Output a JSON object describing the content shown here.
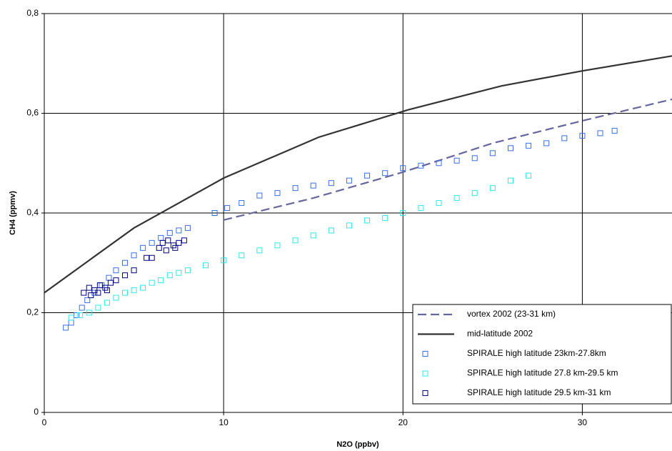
{
  "chart_data": {
    "type": "scatter",
    "x_label": "N2O (ppbv)",
    "y_label": "CH4 (ppmv)",
    "xlim": [
      0,
      35
    ],
    "xticks": [
      0,
      10,
      20,
      30
    ],
    "ylim": [
      0,
      0.8
    ],
    "yticks": [
      0,
      {
        "value": 0.2,
        "label": "0,2"
      },
      {
        "value": 0.4,
        "label": "0,4"
      },
      {
        "value": 0.6,
        "label": "0,6"
      },
      {
        "value": 0.8,
        "label": "0,8"
      }
    ],
    "grid": true,
    "legend": "lower right",
    "series": [
      {
        "name": "vortex 2002 (23-31 km)",
        "style": "dashed",
        "color": "#66669f",
        "x": [
          10,
          15,
          20,
          25,
          30,
          35
        ],
        "values": [
          0.386,
          0.43,
          0.482,
          0.54,
          0.585,
          0.628
        ]
      },
      {
        "name": "mid-latitude 2002",
        "style": "solid",
        "color": "#333333",
        "x": [
          0,
          5,
          10,
          15.3,
          20.3,
          25.5,
          30,
          35
        ],
        "values": [
          0.24,
          0.37,
          0.47,
          0.552,
          0.607,
          0.655,
          0.685,
          0.715
        ]
      },
      {
        "name": "SPIRALE high latitude 23km-27.8km",
        "style": "square",
        "color": "#3a6ee8",
        "x": [
          1.2,
          1.5,
          1.8,
          2.1,
          2.4,
          2.8,
          3.2,
          3.6,
          4.0,
          4.5,
          5.0,
          5.5,
          6.0,
          6.5,
          7.0,
          7.5,
          8.0,
          9.5,
          10.2,
          11,
          12,
          13,
          14,
          15,
          16,
          17,
          18,
          19,
          20,
          21,
          22,
          23,
          24,
          25,
          26,
          27,
          28,
          29,
          30,
          31,
          31.8
        ],
        "values": [
          0.17,
          0.18,
          0.195,
          0.21,
          0.225,
          0.24,
          0.255,
          0.27,
          0.285,
          0.3,
          0.315,
          0.33,
          0.34,
          0.35,
          0.36,
          0.365,
          0.37,
          0.4,
          0.41,
          0.42,
          0.435,
          0.44,
          0.45,
          0.455,
          0.46,
          0.465,
          0.475,
          0.48,
          0.49,
          0.495,
          0.5,
          0.505,
          0.51,
          0.52,
          0.53,
          0.535,
          0.54,
          0.55,
          0.555,
          0.56,
          0.565
        ]
      },
      {
        "name": "SPIRALE high latitude 27.8 km-29.5 km",
        "style": "square",
        "color": "#2ee8e8",
        "x": [
          1.5,
          2.0,
          2.5,
          3.0,
          3.5,
          4.0,
          4.5,
          5.0,
          5.5,
          6.0,
          6.5,
          7.0,
          7.5,
          8.0,
          9.0,
          10.0,
          11,
          12,
          13,
          14,
          15,
          16,
          17,
          18,
          19,
          20,
          21,
          22,
          23,
          24,
          25,
          26,
          27
        ],
        "values": [
          0.19,
          0.195,
          0.2,
          0.21,
          0.22,
          0.23,
          0.24,
          0.245,
          0.25,
          0.26,
          0.265,
          0.275,
          0.28,
          0.285,
          0.295,
          0.305,
          0.315,
          0.325,
          0.335,
          0.345,
          0.355,
          0.365,
          0.375,
          0.385,
          0.39,
          0.4,
          0.41,
          0.42,
          0.43,
          0.44,
          0.45,
          0.465,
          0.475
        ]
      },
      {
        "name": "SPIRALE high latitude 29.5 km-31 km",
        "style": "square",
        "color": "#000080",
        "x": [
          2.2,
          2.5,
          2.8,
          3.1,
          3.4,
          3.7,
          2.6,
          3.0,
          3.5,
          4.0,
          4.5,
          5.0,
          5.7,
          6.0,
          6.4,
          6.6,
          6.9,
          7.2,
          7.5,
          7.8,
          6.8,
          7.3
        ],
        "values": [
          0.24,
          0.25,
          0.245,
          0.255,
          0.25,
          0.26,
          0.235,
          0.24,
          0.245,
          0.265,
          0.275,
          0.285,
          0.31,
          0.31,
          0.33,
          0.34,
          0.345,
          0.335,
          0.34,
          0.345,
          0.325,
          0.33
        ]
      }
    ]
  }
}
